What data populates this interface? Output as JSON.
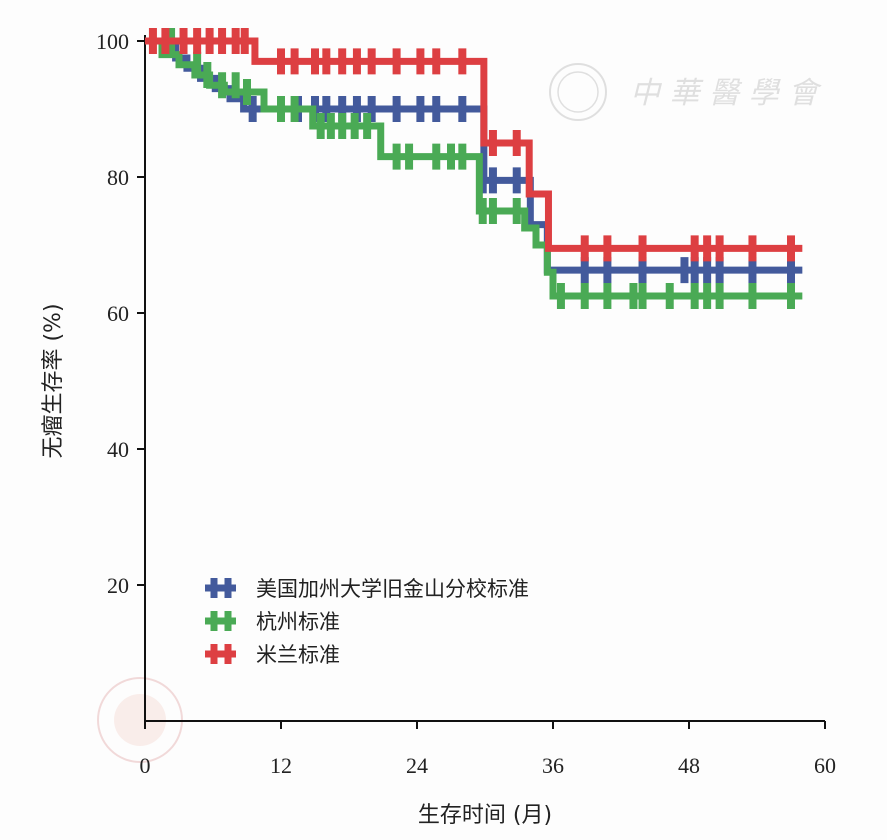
{
  "chart_data": {
    "type": "line",
    "subtype": "kaplan-meier",
    "xlabel": "生存时间 (月)",
    "ylabel": "无瘤生存率 (%)",
    "xlim": [
      0,
      60
    ],
    "ylim": [
      0,
      100
    ],
    "xticks": [
      0,
      12,
      24,
      36,
      48,
      60
    ],
    "yticks": [
      20,
      40,
      60,
      80,
      100
    ],
    "legend_position": "bottom-left",
    "watermark": "中华医学会",
    "series": [
      {
        "name": "美国加州大学旧金山分校标准",
        "color": "#435a9c",
        "steps": [
          [
            0,
            100
          ],
          [
            2.7,
            97.5
          ],
          [
            3.7,
            96
          ],
          [
            4.9,
            94.5
          ],
          [
            6.2,
            93
          ],
          [
            7.5,
            91.5
          ],
          [
            8.7,
            90
          ],
          [
            29.9,
            79.5
          ],
          [
            34,
            73
          ],
          [
            35.5,
            66.3
          ],
          [
            58,
            66.3
          ]
        ],
        "censors": [
          [
            9.5,
            90
          ],
          [
            12,
            90
          ],
          [
            13.5,
            90
          ],
          [
            15,
            90
          ],
          [
            16,
            90
          ],
          [
            17.4,
            90
          ],
          [
            18.7,
            90
          ],
          [
            20,
            90
          ],
          [
            22.2,
            90
          ],
          [
            24.3,
            90
          ],
          [
            25.7,
            90
          ],
          [
            28,
            90
          ],
          [
            29.8,
            79.5
          ],
          [
            30.7,
            79.5
          ],
          [
            32.8,
            79.5
          ],
          [
            38.8,
            66.3
          ],
          [
            40.8,
            66.3
          ],
          [
            43.9,
            66.3
          ],
          [
            47.6,
            66.3
          ],
          [
            48.5,
            66.3
          ],
          [
            49.6,
            66.3
          ],
          [
            50.7,
            66.3
          ],
          [
            53.6,
            66.3
          ],
          [
            57,
            66.3
          ]
        ]
      },
      {
        "name": "杭州标准",
        "color": "#4aaa55",
        "steps": [
          [
            0,
            100
          ],
          [
            1.5,
            98
          ],
          [
            3,
            96.5
          ],
          [
            4.4,
            95
          ],
          [
            5.7,
            93.5
          ],
          [
            7,
            92.5
          ],
          [
            10.5,
            90
          ],
          [
            14.8,
            87.5
          ],
          [
            20.8,
            83
          ],
          [
            29.5,
            75
          ],
          [
            33.5,
            72.5
          ],
          [
            34.5,
            70
          ],
          [
            35.5,
            66
          ],
          [
            36,
            62.5
          ],
          [
            58,
            62.5
          ]
        ],
        "censors": [
          [
            2.3,
            100
          ],
          [
            4.6,
            96.5
          ],
          [
            5.5,
            95
          ],
          [
            6.8,
            93.5
          ],
          [
            8,
            93.5
          ],
          [
            9,
            92.5
          ],
          [
            12,
            90
          ],
          [
            13.2,
            90
          ],
          [
            15.5,
            87.5
          ],
          [
            16.4,
            87.5
          ],
          [
            17.4,
            87.5
          ],
          [
            18.5,
            87.5
          ],
          [
            19.6,
            87.5
          ],
          [
            22.2,
            83
          ],
          [
            23.3,
            83
          ],
          [
            25.7,
            83
          ],
          [
            27,
            83
          ],
          [
            28,
            83
          ],
          [
            29.8,
            75
          ],
          [
            30.7,
            75
          ],
          [
            32.8,
            75
          ],
          [
            36.7,
            62.5
          ],
          [
            38.8,
            62.5
          ],
          [
            40.8,
            62.5
          ],
          [
            43.1,
            62.5
          ],
          [
            43.9,
            62.5
          ],
          [
            46.3,
            62.5
          ],
          [
            48.5,
            62.5
          ],
          [
            49.6,
            62.5
          ],
          [
            50.7,
            62.5
          ],
          [
            53.6,
            62.5
          ],
          [
            57,
            62.5
          ]
        ]
      },
      {
        "name": "米兰标准",
        "color": "#dd3f42",
        "steps": [
          [
            0,
            100
          ],
          [
            9.7,
            97
          ],
          [
            29.9,
            85
          ],
          [
            33.9,
            77.5
          ],
          [
            35.6,
            69.5
          ],
          [
            58,
            69.5
          ]
        ],
        "censors": [
          [
            0.7,
            100
          ],
          [
            1.8,
            100
          ],
          [
            3.4,
            100
          ],
          [
            4.6,
            100
          ],
          [
            5.7,
            100
          ],
          [
            6.8,
            100
          ],
          [
            8,
            100
          ],
          [
            8.8,
            100
          ],
          [
            12,
            97
          ],
          [
            13.2,
            97
          ],
          [
            15,
            97
          ],
          [
            16,
            97
          ],
          [
            17.4,
            97
          ],
          [
            18.7,
            97
          ],
          [
            20,
            97
          ],
          [
            22.2,
            97
          ],
          [
            24.3,
            97
          ],
          [
            25.7,
            97
          ],
          [
            28,
            97
          ],
          [
            30.7,
            85
          ],
          [
            32.8,
            85
          ],
          [
            38.8,
            69.5
          ],
          [
            40.8,
            69.5
          ],
          [
            43.9,
            69.5
          ],
          [
            48.5,
            69.5
          ],
          [
            49.6,
            69.5
          ],
          [
            50.7,
            69.5
          ],
          [
            53.6,
            69.5
          ],
          [
            57,
            69.5
          ]
        ]
      }
    ]
  }
}
